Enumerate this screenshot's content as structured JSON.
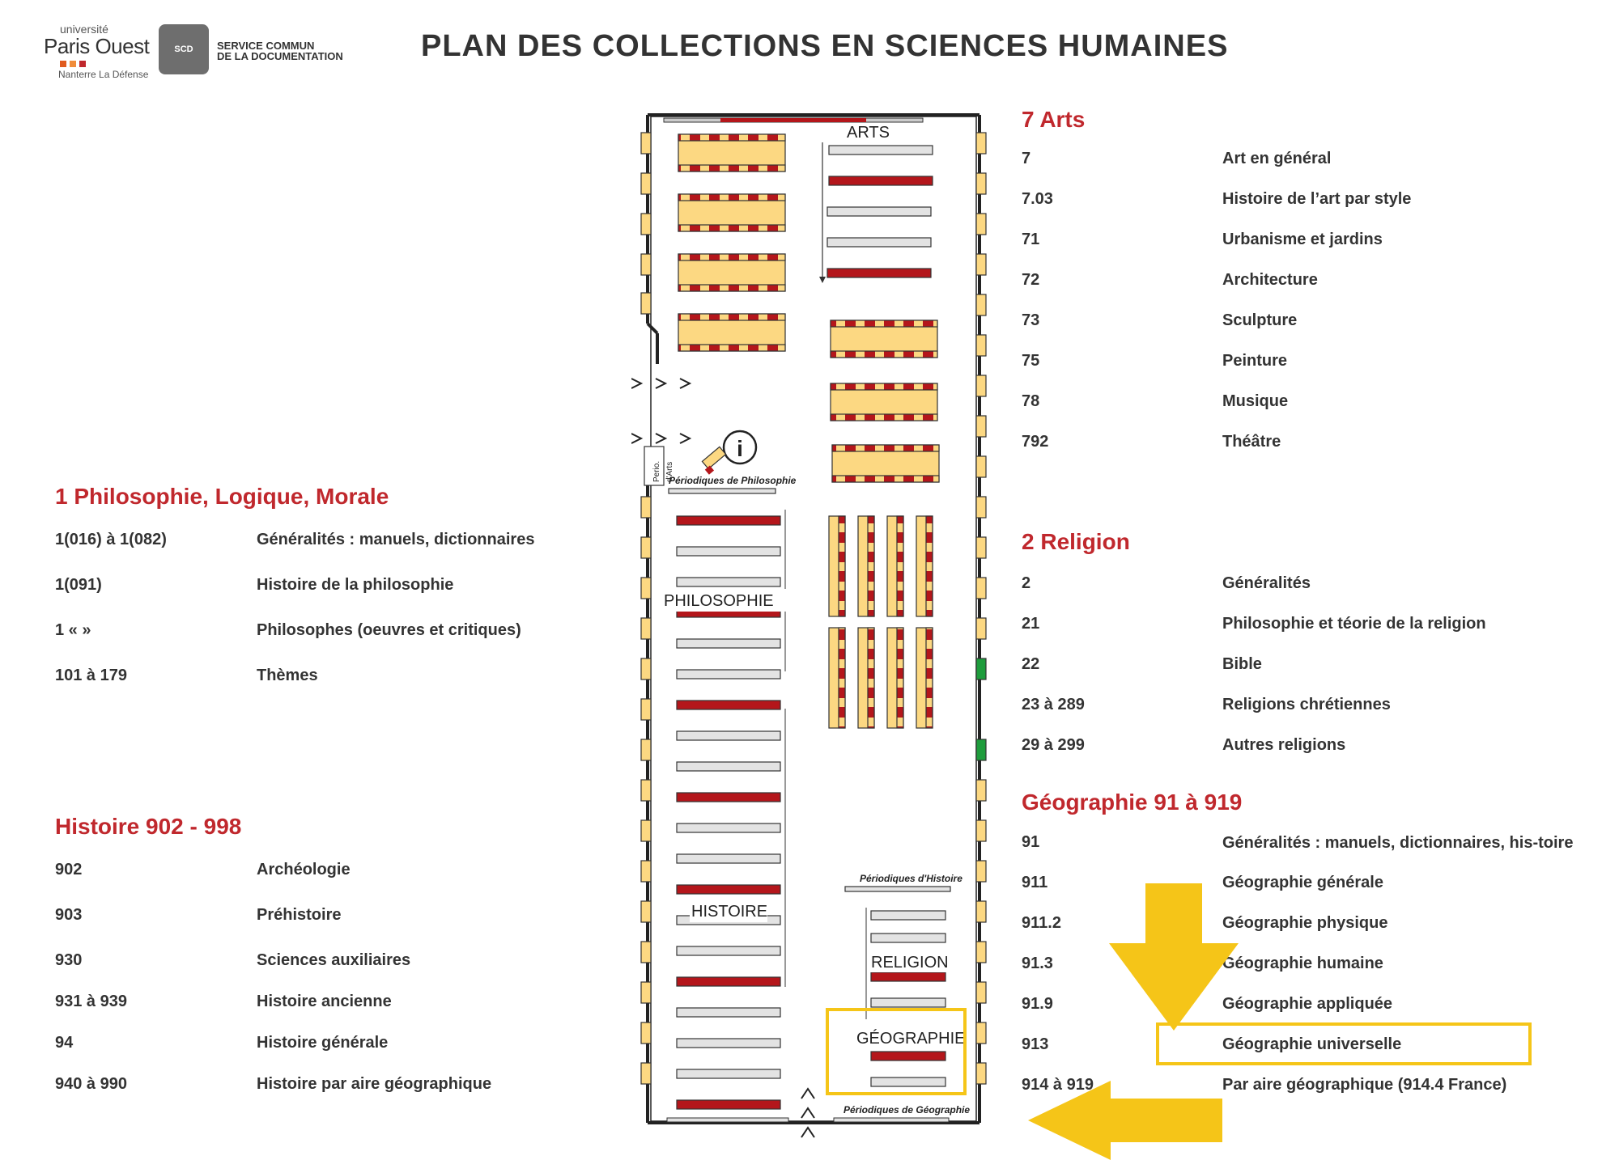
{
  "header": {
    "title": "PLAN DES COLLECTIONS EN SCIENCES HUMAINES",
    "logo": {
      "line1": "université",
      "line2": "Paris Ouest",
      "line3": "Nanterre La Défense"
    },
    "scd": {
      "badge": "SCD",
      "line1": "SERVICE COMMUN",
      "line2": "DE LA DOCUMENTATION"
    }
  },
  "colors": {
    "accent_red": "#c0282d",
    "shelf_red": "#b4161b",
    "table_yellow": "#fcd882",
    "highlight_yellow": "#f5c518",
    "green": "#1e9c3c"
  },
  "map": {
    "labels": {
      "arts": "ARTS",
      "philosophie": "PHILOSOPHIE",
      "histoire": "HISTOIRE",
      "religion": "RELIGION",
      "geographie": "GÉOGRAPHIE",
      "perio_philo": "Périodiques de Philosophie",
      "perio_histoire": "Périodiques d'Histoire",
      "perio_geo": "Périodiques de Géographie",
      "perio_arts_1": "Perio.",
      "perio_arts_2": "d'Arts",
      "info": "i"
    }
  },
  "sections": {
    "philosophie": {
      "heading": "1 Philosophie, Logique, Morale",
      "rows": [
        {
          "code": "1(016) à 1(082)",
          "label": "Généralités : manuels, dictionnaires"
        },
        {
          "code": "1(091)",
          "label": "Histoire de la philosophie"
        },
        {
          "code": "1 « »",
          "label": "Philosophes (oeuvres et critiques)"
        },
        {
          "code": "101 à 179",
          "label": "Thèmes"
        }
      ]
    },
    "histoire": {
      "heading": "Histoire 902 - 998",
      "rows": [
        {
          "code": "902",
          "label": "Archéologie"
        },
        {
          "code": "903",
          "label": "Préhistoire"
        },
        {
          "code": "930",
          "label": "Sciences auxiliaires"
        },
        {
          "code": "931 à 939",
          "label": "Histoire ancienne"
        },
        {
          "code": "94",
          "label": "Histoire générale"
        },
        {
          "code": "940 à 990",
          "label": "Histoire par aire géographique"
        }
      ]
    },
    "arts": {
      "heading": "7 Arts",
      "rows": [
        {
          "code": "7",
          "label": "Art en général"
        },
        {
          "code": "7.03",
          "label": "Histoire de l’art par style"
        },
        {
          "code": "71",
          "label": "Urbanisme et jardins"
        },
        {
          "code": "72",
          "label": "Architecture"
        },
        {
          "code": "73",
          "label": "Sculpture"
        },
        {
          "code": "75",
          "label": "Peinture"
        },
        {
          "code": "78",
          "label": "Musique"
        },
        {
          "code": "792",
          "label": "Théâtre"
        }
      ]
    },
    "religion": {
      "heading": "2 Religion",
      "rows": [
        {
          "code": "2",
          "label": "Généralités"
        },
        {
          "code": "21",
          "label": "Philosophie et téorie de la religion"
        },
        {
          "code": "22",
          "label": "Bible"
        },
        {
          "code": "23 à 289",
          "label": "Religions chrétiennes"
        },
        {
          "code": "29 à 299",
          "label": "Autres religions"
        }
      ]
    },
    "geographie": {
      "heading": "Géographie 91 à 919",
      "rows": [
        {
          "code": "91",
          "label": "Généralités : manuels, dictionnaires, his-toire"
        },
        {
          "code": "911",
          "label": "Géographie générale"
        },
        {
          "code": "911.2",
          "label": "Géographie physique"
        },
        {
          "code": "91.3",
          "label": "Géographie humaine"
        },
        {
          "code": "91.9",
          "label": "Géographie appliquée"
        },
        {
          "code": "913",
          "label": "Géographie universelle"
        },
        {
          "code": "914 à 919",
          "label": "Par aire géographique (914.4 France)"
        }
      ]
    }
  }
}
